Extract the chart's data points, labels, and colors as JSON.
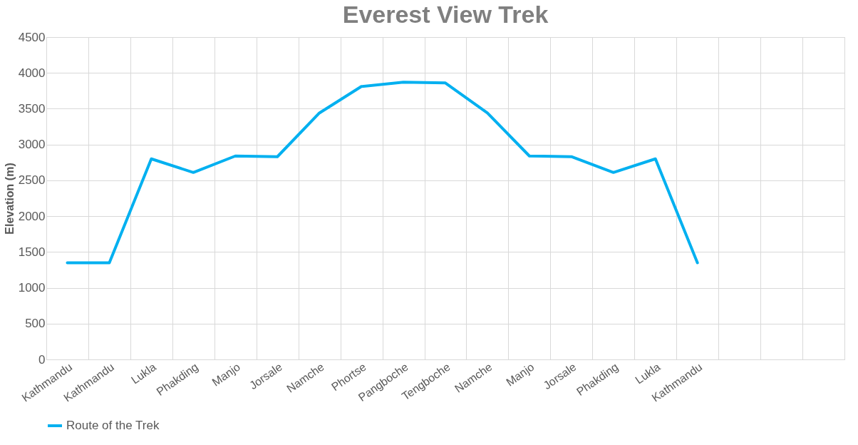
{
  "chart_data": {
    "type": "line",
    "title": "Everest View Trek",
    "ylabel": "Elevation (m)",
    "categories": [
      "Kathmandu",
      "Kathmandu",
      "Lukla",
      "Phakding",
      "Manjo",
      "Jorsale",
      "Namche",
      "Phortse",
      "Pangboche",
      "Tengboche",
      "Namche",
      "Manjo",
      "Jorsale",
      "Phakding",
      "Lukla",
      "Kathmandu",
      null,
      null,
      null
    ],
    "series": [
      {
        "name": "Route of the Trek",
        "color": "#00b0f0",
        "values": [
          1350,
          1350,
          2800,
          2610,
          2840,
          2830,
          3440,
          3810,
          3870,
          3860,
          3440,
          2840,
          2830,
          2610,
          2800,
          1350,
          null,
          null,
          null
        ]
      }
    ],
    "ylim": [
      0,
      4500
    ],
    "yticks": [
      0,
      500,
      1000,
      1500,
      2000,
      2500,
      3000,
      3500,
      4000,
      4500
    ],
    "grid": true,
    "legend": "bottom",
    "marker": "none",
    "line_style": "solid"
  }
}
